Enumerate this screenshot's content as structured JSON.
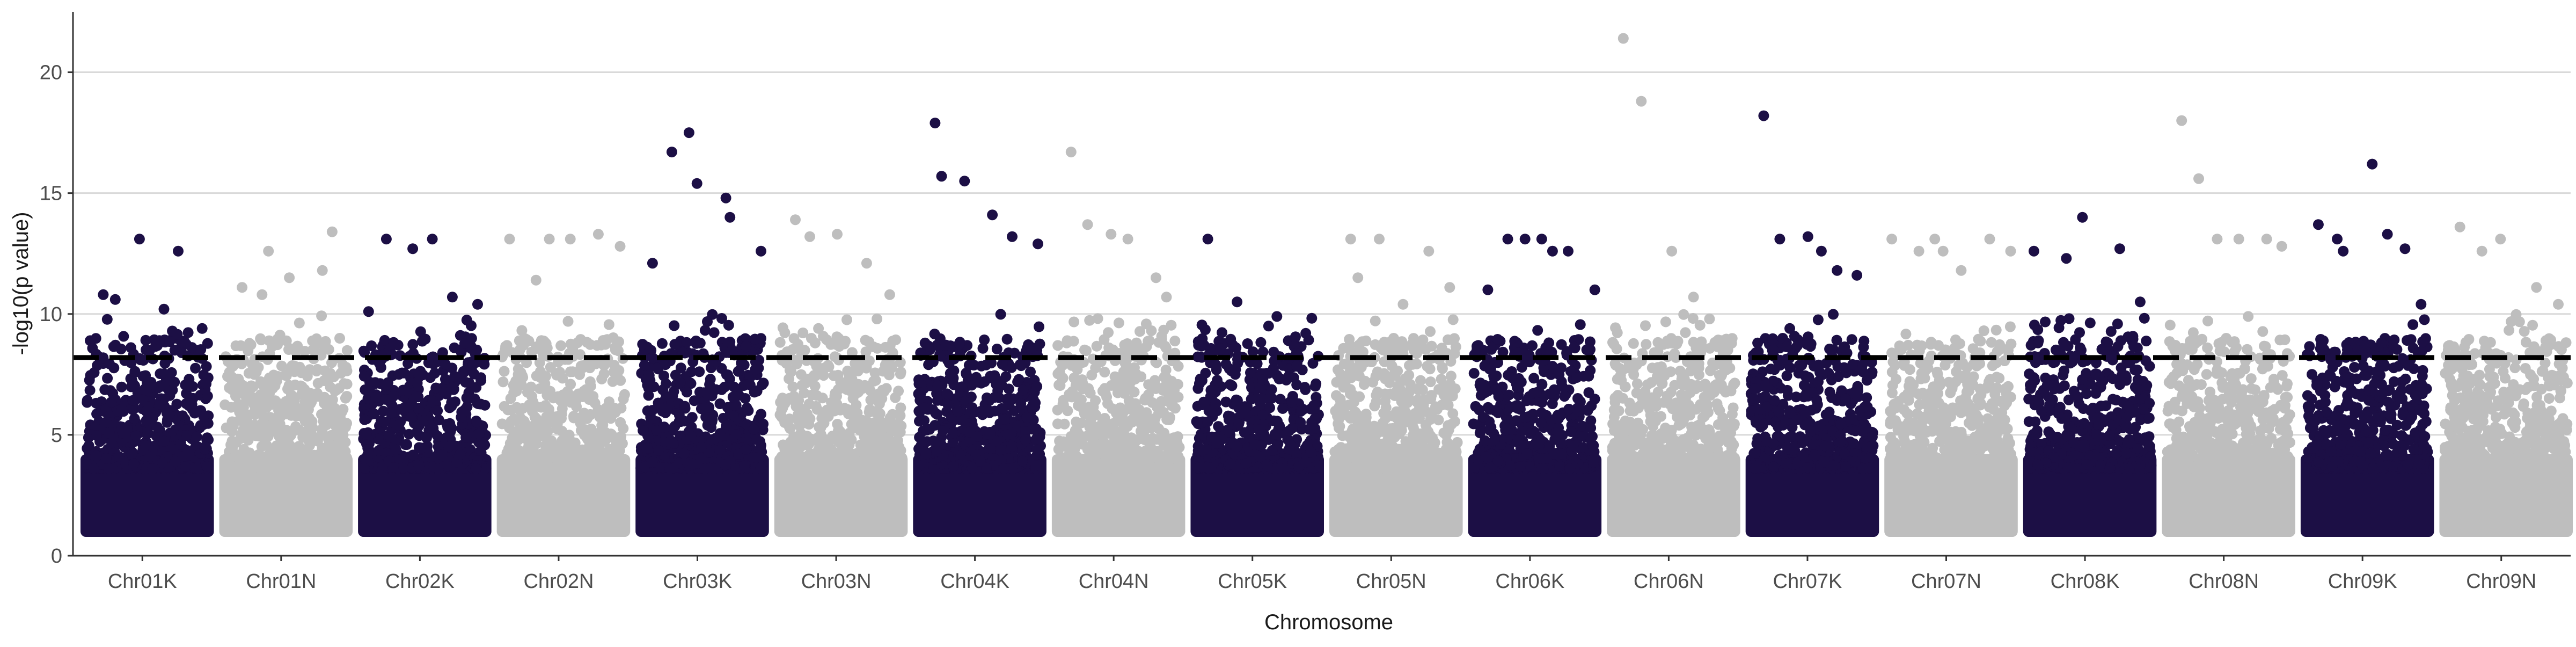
{
  "chart_data": {
    "type": "scatter",
    "subtype": "manhattan",
    "title": "",
    "xlabel": "Chromosome",
    "ylabel": "-log10(p value)",
    "ylim": [
      0,
      22.5
    ],
    "yticks": [
      0,
      5,
      10,
      15,
      20
    ],
    "grid": "horizontal major lines",
    "legend": "none",
    "threshold": 8.2,
    "threshold_style": "dashed",
    "colors": {
      "dark": "#1c0f45",
      "light": "#bebebe",
      "grid": "#d9d9d9",
      "axis": "#333333",
      "threshold": "#000000"
    },
    "categories": [
      "Chr01K",
      "Chr01N",
      "Chr02K",
      "Chr02N",
      "Chr03K",
      "Chr03N",
      "Chr04K",
      "Chr04N",
      "Chr05K",
      "Chr05N",
      "Chr06K",
      "Chr06N",
      "Chr07K",
      "Chr07N",
      "Chr08K",
      "Chr08N",
      "Chr09K",
      "Chr09N"
    ],
    "series": [
      {
        "color_group": "dark",
        "values": [
          10.8,
          10.6,
          13.1,
          10.2,
          12.6,
          9.4
        ]
      },
      {
        "color_group": "light",
        "values": [
          11.1,
          10.8,
          12.6,
          11.5,
          11.8,
          13.4
        ]
      },
      {
        "color_group": "dark",
        "values": [
          10.1,
          13.1,
          12.7,
          13.1,
          10.7,
          10.4
        ]
      },
      {
        "color_group": "light",
        "values": [
          13.1,
          11.4,
          13.1,
          13.1,
          13.3,
          12.8
        ]
      },
      {
        "color_group": "dark",
        "values": [
          12.1,
          16.7,
          17.5,
          15.4,
          14.8,
          14.0,
          12.6
        ]
      },
      {
        "color_group": "light",
        "values": [
          13.9,
          13.2,
          13.3,
          12.1,
          10.8
        ]
      },
      {
        "color_group": "dark",
        "values": [
          17.9,
          15.7,
          15.5,
          14.1,
          13.2,
          12.9
        ]
      },
      {
        "color_group": "light",
        "values": [
          16.7,
          13.7,
          13.3,
          13.1,
          11.5,
          10.7
        ]
      },
      {
        "color_group": "dark",
        "values": [
          13.1,
          10.5,
          9.5,
          9.2
        ]
      },
      {
        "color_group": "light",
        "values": [
          13.1,
          11.5,
          13.1,
          10.4,
          12.6,
          11.1
        ]
      },
      {
        "color_group": "dark",
        "values": [
          11.0,
          13.1,
          13.1,
          13.1,
          12.6,
          12.6,
          11.0
        ]
      },
      {
        "color_group": "light",
        "values": [
          21.4,
          18.8,
          12.6,
          10.7,
          8.9
        ]
      },
      {
        "color_group": "dark",
        "values": [
          18.2,
          13.1,
          13.2,
          12.6,
          11.8,
          11.6
        ]
      },
      {
        "color_group": "light",
        "values": [
          13.1,
          12.6,
          13.1,
          12.6,
          11.8,
          13.1,
          12.6
        ]
      },
      {
        "color_group": "dark",
        "values": [
          12.6,
          12.3,
          14.0,
          12.7,
          10.5
        ]
      },
      {
        "color_group": "light",
        "values": [
          18.0,
          15.6,
          13.1,
          13.1,
          13.1,
          12.8
        ]
      },
      {
        "color_group": "dark",
        "values": [
          13.7,
          13.1,
          12.6,
          16.2,
          13.3,
          12.7,
          10.4
        ]
      },
      {
        "color_group": "light",
        "values": [
          13.6,
          12.6,
          13.1,
          11.1,
          10.4
        ]
      }
    ]
  }
}
